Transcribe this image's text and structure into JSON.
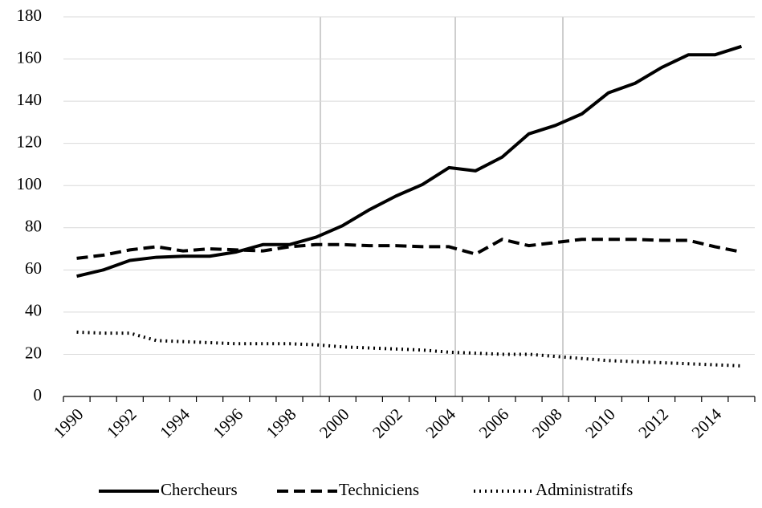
{
  "chart_data": {
    "type": "line",
    "categories": [
      "1990",
      null,
      "1992",
      null,
      "1994",
      null,
      "1996",
      null,
      "1998",
      null,
      "2000",
      null,
      "2002",
      null,
      "2004",
      null,
      "2006",
      null,
      "2008",
      null,
      "2010",
      null,
      "2012",
      null,
      "2014",
      null
    ],
    "series": [
      {
        "name": "Chercheurs",
        "color": "#000000",
        "style": "solid",
        "values": [
          57,
          60,
          64.5,
          66,
          66.5,
          66.5,
          68.5,
          72,
          72,
          75.5,
          81,
          88.5,
          95,
          100.5,
          108.5,
          107,
          113.5,
          124.5,
          128.5,
          134,
          144,
          148.5,
          156,
          162,
          162,
          166
        ]
      },
      {
        "name": "Techniciens",
        "color": "#000000",
        "style": "dashed",
        "values": [
          65.5,
          67,
          69.5,
          71,
          69,
          70,
          69.5,
          69,
          71,
          72,
          72,
          71.5,
          71.5,
          71,
          71,
          67.5,
          74.5,
          71.5,
          73,
          74.5,
          74.5,
          74.5,
          74,
          74,
          71,
          68.5
        ]
      },
      {
        "name": "Administratifs",
        "color": "#000000",
        "style": "dotted",
        "values": [
          30.5,
          30,
          30,
          26.5,
          26,
          25.5,
          25,
          25,
          25,
          24.5,
          23.5,
          23,
          22.5,
          22,
          21,
          20.5,
          20,
          20,
          19,
          18,
          17,
          16.5,
          16,
          15.5,
          15,
          14.5
        ]
      }
    ],
    "ylim": [
      0,
      180
    ],
    "yticks": [
      0,
      20,
      40,
      60,
      80,
      100,
      120,
      140,
      160,
      180
    ],
    "grid": true,
    "legend": "bottom"
  }
}
